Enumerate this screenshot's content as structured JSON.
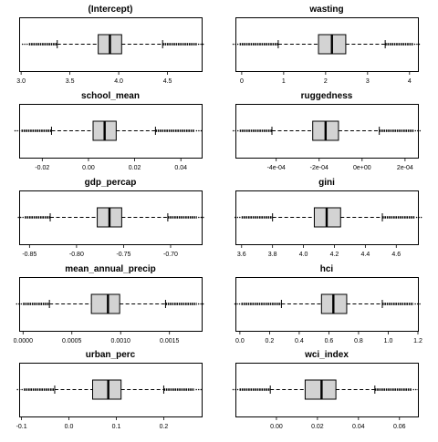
{
  "colors": {
    "box_fill": "#d3d3d3",
    "stroke": "#000000",
    "background": "#ffffff"
  },
  "chart_data": [
    {
      "type": "boxplot",
      "title": "(Intercept)",
      "orientation": "horizontal",
      "xlim": [
        2.98,
        4.85
      ],
      "ticks": [
        3.0,
        3.5,
        4.0,
        4.5
      ],
      "tick_labels": [
        "3.0",
        "3.5",
        "4.0",
        "4.5"
      ],
      "stats": {
        "whisker_low": 3.37,
        "q1": 3.79,
        "median": 3.91,
        "q3": 4.03,
        "whisker_high": 4.45
      },
      "outlier_range_low": [
        3.08,
        3.37
      ],
      "outlier_range_high": [
        4.45,
        4.8
      ]
    },
    {
      "type": "boxplot",
      "title": "wasting",
      "orientation": "horizontal",
      "xlim": [
        -0.15,
        4.2
      ],
      "ticks": [
        0,
        1,
        2,
        3,
        4
      ],
      "tick_labels": [
        "0",
        "1",
        "2",
        "3",
        "4"
      ],
      "stats": {
        "whisker_low": 0.87,
        "q1": 1.83,
        "median": 2.15,
        "q3": 2.48,
        "whisker_high": 3.42
      },
      "outlier_range_low": [
        -0.05,
        0.87
      ],
      "outlier_range_high": [
        3.42,
        4.08
      ]
    },
    {
      "type": "boxplot",
      "title": "school_mean",
      "orientation": "horizontal",
      "xlim": [
        -0.03,
        0.049
      ],
      "ticks": [
        -0.02,
        0.0,
        0.02,
        0.04
      ],
      "tick_labels": [
        "-0.02",
        "0.00",
        "0.02",
        "0.04"
      ],
      "stats": {
        "whisker_low": -0.016,
        "q1": 0.002,
        "median": 0.007,
        "q3": 0.012,
        "whisker_high": 0.029
      },
      "outlier_range_low": [
        -0.029,
        -0.016
      ],
      "outlier_range_high": [
        0.029,
        0.046
      ]
    },
    {
      "type": "boxplot",
      "title": "ruggedness",
      "orientation": "horizontal",
      "xlim": [
        -0.00059,
        0.00026
      ],
      "ticks": [
        -0.0004,
        -0.0002,
        0.0,
        0.0002
      ],
      "tick_labels": [
        "-4e-04",
        "-2e-04",
        "0e+00",
        "2e-04"
      ],
      "stats": {
        "whisker_low": -0.00042,
        "q1": -0.00023,
        "median": -0.00017,
        "q3": -0.00011,
        "whisker_high": 8e-05
      },
      "outlier_range_low": [
        -0.00057,
        -0.00042
      ],
      "outlier_range_high": [
        8e-05,
        0.00024
      ]
    },
    {
      "type": "boxplot",
      "title": "gdp_percap",
      "orientation": "horizontal",
      "xlim": [
        -0.861,
        -0.667
      ],
      "ticks": [
        -0.85,
        -0.8,
        -0.75,
        -0.7
      ],
      "tick_labels": [
        "-0.85",
        "-0.80",
        "-0.75",
        "-0.70"
      ],
      "stats": {
        "whisker_low": -0.828,
        "q1": -0.778,
        "median": -0.765,
        "q3": -0.752,
        "whisker_high": -0.703
      },
      "outlier_range_low": [
        -0.855,
        -0.828
      ],
      "outlier_range_high": [
        -0.703,
        -0.672
      ]
    },
    {
      "type": "boxplot",
      "title": "gini",
      "orientation": "horizontal",
      "xlim": [
        3.56,
        4.74
      ],
      "ticks": [
        3.6,
        3.8,
        4.0,
        4.2,
        4.4,
        4.6
      ],
      "tick_labels": [
        "3.6",
        "3.8",
        "4.0",
        "4.2",
        "4.4",
        "4.6"
      ],
      "stats": {
        "whisker_low": 3.8,
        "q1": 4.07,
        "median": 4.15,
        "q3": 4.24,
        "whisker_high": 4.51
      },
      "outlier_range_low": [
        3.6,
        3.8
      ],
      "outlier_range_high": [
        4.51,
        4.72
      ]
    },
    {
      "type": "boxplot",
      "title": "mean_annual_precip",
      "orientation": "horizontal",
      "xlim": [
        -4e-05,
        0.00183
      ],
      "ticks": [
        0.0,
        0.0005,
        0.001,
        0.0015
      ],
      "tick_labels": [
        "0.0000",
        "0.0005",
        "0.0010",
        "0.0015"
      ],
      "stats": {
        "whisker_low": 0.00027,
        "q1": 0.0007,
        "median": 0.00087,
        "q3": 0.00099,
        "whisker_high": 0.00146
      },
      "outlier_range_low": [
        0.0,
        0.00027
      ],
      "outlier_range_high": [
        0.00146,
        0.00178
      ]
    },
    {
      "type": "boxplot",
      "title": "hci",
      "orientation": "horizontal",
      "xlim": [
        -0.03,
        1.2
      ],
      "ticks": [
        0.0,
        0.2,
        0.4,
        0.6,
        0.8,
        1.0,
        1.2
      ],
      "tick_labels": [
        "0.0",
        "0.2",
        "0.4",
        "0.6",
        "0.8",
        "1.0",
        "1.2"
      ],
      "stats": {
        "whisker_low": 0.28,
        "q1": 0.55,
        "median": 0.63,
        "q3": 0.72,
        "whisker_high": 0.96
      },
      "outlier_range_low": [
        0.01,
        0.28
      ],
      "outlier_range_high": [
        0.96,
        1.17
      ]
    },
    {
      "type": "boxplot",
      "title": "urban_perc",
      "orientation": "horizontal",
      "xlim": [
        -0.105,
        0.28
      ],
      "ticks": [
        -0.1,
        0.0,
        0.1,
        0.2
      ],
      "tick_labels": [
        "-0.1",
        "0.0",
        "0.1",
        "0.2"
      ],
      "stats": {
        "whisker_low": -0.03,
        "q1": 0.05,
        "median": 0.083,
        "q3": 0.11,
        "whisker_high": 0.2
      },
      "outlier_range_low": [
        -0.095,
        -0.03
      ],
      "outlier_range_high": [
        0.2,
        0.265
      ]
    },
    {
      "type": "boxplot",
      "title": "wci_index",
      "orientation": "horizontal",
      "xlim": [
        -0.02,
        0.069
      ],
      "ticks": [
        0.0,
        0.02,
        0.04,
        0.06
      ],
      "tick_labels": [
        "0.00",
        "0.02",
        "0.04",
        "0.06"
      ],
      "stats": {
        "whisker_low": -0.003,
        "q1": 0.014,
        "median": 0.022,
        "q3": 0.029,
        "whisker_high": 0.048
      },
      "outlier_range_low": [
        -0.018,
        -0.003
      ],
      "outlier_range_high": [
        0.048,
        0.066
      ]
    }
  ]
}
